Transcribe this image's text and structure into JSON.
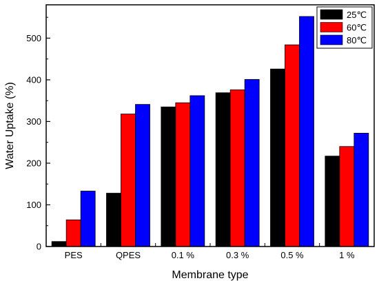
{
  "chart_data": {
    "type": "bar",
    "title": "",
    "xlabel": "Membrane type",
    "ylabel": "Water Uptake (%)",
    "categories": [
      "PES",
      "QPES",
      "0.1 %",
      "0.3 %",
      "0.5 %",
      "1 %"
    ],
    "series": [
      {
        "name": "25℃",
        "color": "#000000",
        "values": [
          12,
          128,
          335,
          369,
          426,
          217
        ]
      },
      {
        "name": "60℃",
        "color": "#ff0000",
        "values": [
          64,
          318,
          345,
          376,
          484,
          240
        ]
      },
      {
        "name": "80℃",
        "color": "#0000ff",
        "values": [
          133,
          341,
          362,
          401,
          552,
          272
        ]
      }
    ],
    "ylim": [
      0,
      580
    ],
    "yticks": [
      0,
      100,
      200,
      300,
      400,
      500
    ],
    "grid": false,
    "legend_position": "top-right"
  }
}
